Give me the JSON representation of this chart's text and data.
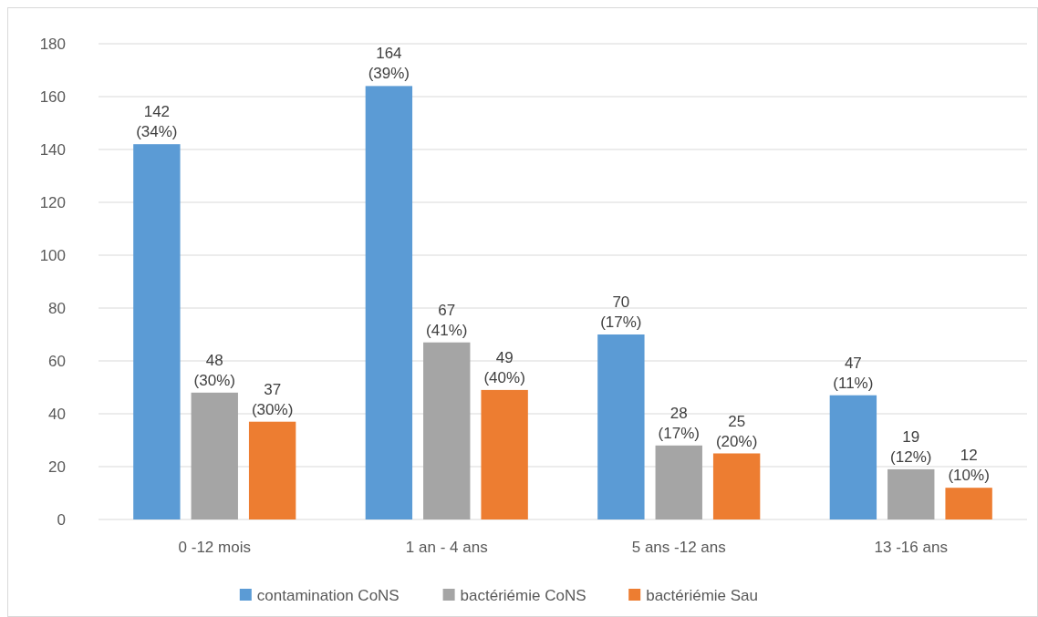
{
  "chart_data": {
    "type": "bar",
    "categories": [
      "0 -12 mois",
      "1 an - 4 ans",
      "5 ans -12 ans",
      "13 -16 ans"
    ],
    "series": [
      {
        "name": "contamination CoNS",
        "color": "#5b9bd5",
        "values": [
          142,
          164,
          70,
          47
        ],
        "value_labels": [
          "142 (34%)",
          "164 (39%)",
          "70 (17%)",
          "47 (11%)"
        ]
      },
      {
        "name": "bactériémie CoNS",
        "color": "#a5a5a5",
        "values": [
          48,
          67,
          28,
          19
        ],
        "value_labels": [
          "48 (30%)",
          "67 (41%)",
          "28 (17%)",
          "19 (12%)"
        ]
      },
      {
        "name": "bactériémie Sau",
        "color": "#ed7d31",
        "values": [
          37,
          49,
          25,
          12
        ],
        "value_labels": [
          "37 (30%)",
          "49 (40%)",
          "25 (20%)",
          "12 (10%)"
        ]
      }
    ],
    "ylim": [
      0,
      180
    ],
    "yticks": [
      0,
      20,
      40,
      60,
      80,
      100,
      120,
      140,
      160,
      180
    ],
    "grid": "y",
    "legend": "bottom"
  }
}
